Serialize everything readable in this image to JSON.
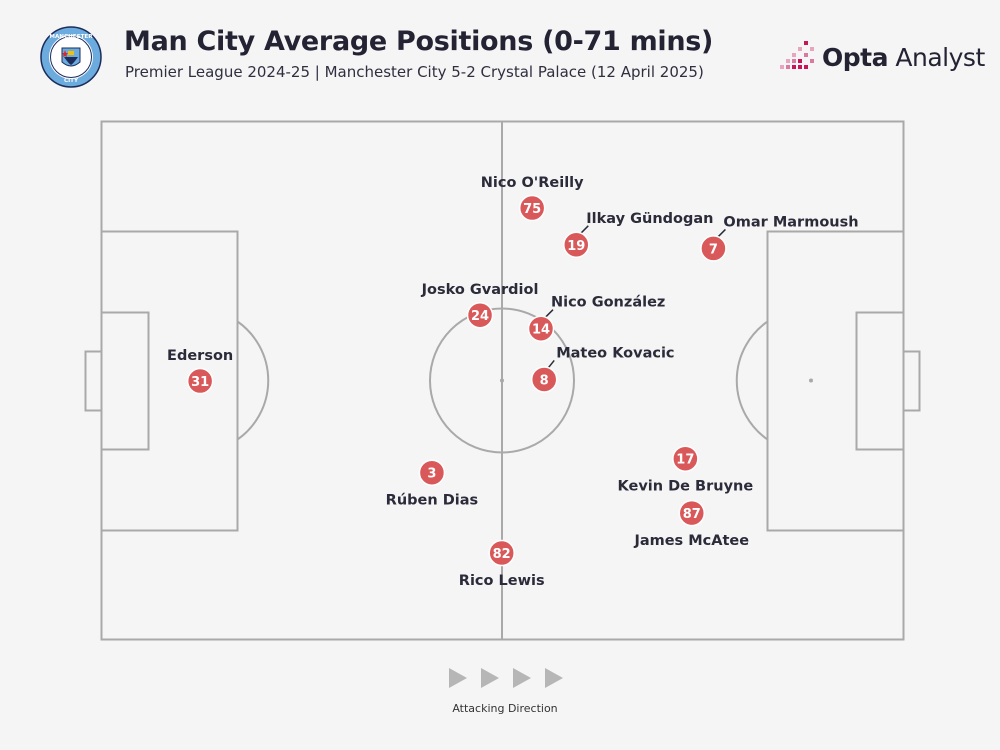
{
  "header": {
    "title": "Man City Average Positions (0-71 mins)",
    "subtitle": "Premier League 2024-25 | Manchester City 5-2 Crystal Palace (12 April 2025)",
    "crest_icon": "manchester-city-crest-icon",
    "brand_icon": "opta-analyst-logo-icon",
    "brand_bold": "Opta",
    "brand_light": " Analyst",
    "crest_text_top": "MANCHESTER",
    "crest_text_bottom": "CITY"
  },
  "footer": {
    "direction_label": "Attacking Direction",
    "direction_icon": "play-arrow-icon"
  },
  "colors": {
    "marker": "#d9595a",
    "pitch_line": "#a9a9a9",
    "text": "#2b2b3a",
    "arrow": "#b6b6b6",
    "crest_blue": "#6cabdd",
    "brand_pink": "#c8155a"
  },
  "chart_data": {
    "type": "scatter",
    "title": "Man City Average Positions (0-71 mins)",
    "xlim": [
      0,
      100
    ],
    "ylim": [
      0,
      100
    ],
    "grid": false,
    "players": [
      {
        "number": "31",
        "name": "Ederson",
        "x": 12.3,
        "y": 49.9,
        "label": "above"
      },
      {
        "number": "3",
        "name": "Rúben Dias",
        "x": 41.2,
        "y": 32.2,
        "label": "below"
      },
      {
        "number": "24",
        "name": "Josko Gvardiol",
        "x": 47.2,
        "y": 62.6,
        "label": "above"
      },
      {
        "number": "82",
        "name": "Rico Lewis",
        "x": 49.9,
        "y": 16.7,
        "label": "below"
      },
      {
        "number": "75",
        "name": "Nico O'Reilly",
        "x": 53.7,
        "y": 83.3,
        "label": "above"
      },
      {
        "number": "14",
        "name": "Nico González",
        "x": 54.8,
        "y": 60.0,
        "label": "above-right"
      },
      {
        "number": "8",
        "name": "Mateo Kovacic",
        "x": 55.2,
        "y": 50.2,
        "label": "right"
      },
      {
        "number": "19",
        "name": "Ilkay Gündogan",
        "x": 59.2,
        "y": 76.2,
        "label": "above-right"
      },
      {
        "number": "17",
        "name": "Kevin De Bruyne",
        "x": 72.8,
        "y": 34.9,
        "label": "below"
      },
      {
        "number": "87",
        "name": "James McAtee",
        "x": 73.6,
        "y": 24.4,
        "label": "below"
      },
      {
        "number": "7",
        "name": "Omar Marmoush",
        "x": 76.3,
        "y": 75.5,
        "label": "above-right"
      }
    ]
  }
}
